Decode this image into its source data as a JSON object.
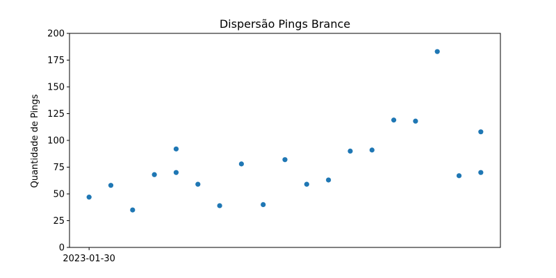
{
  "chart_data": {
    "type": "scatter",
    "title": "Dispersão Pings Brance",
    "xlabel": "",
    "ylabel": "Quantidade de Pings",
    "x_type": "date",
    "x_tick_labels": [
      "2023-01-30"
    ],
    "ylim": [
      0,
      200
    ],
    "y_ticks": [
      0,
      25,
      50,
      75,
      100,
      125,
      150,
      175,
      200
    ],
    "grid": false,
    "marker_color": "#1f77b4",
    "points": [
      {
        "x": "2023-01-30",
        "y": 47
      },
      {
        "x": "2023-01-31",
        "y": 58
      },
      {
        "x": "2023-02-01",
        "y": 35
      },
      {
        "x": "2023-02-02",
        "y": 68
      },
      {
        "x": "2023-02-03",
        "y": 92
      },
      {
        "x": "2023-02-03",
        "y": 70
      },
      {
        "x": "2023-02-04",
        "y": 59
      },
      {
        "x": "2023-02-05",
        "y": 39
      },
      {
        "x": "2023-02-06",
        "y": 78
      },
      {
        "x": "2023-02-07",
        "y": 40
      },
      {
        "x": "2023-02-08",
        "y": 82
      },
      {
        "x": "2023-02-09",
        "y": 59
      },
      {
        "x": "2023-02-10",
        "y": 63
      },
      {
        "x": "2023-02-11",
        "y": 90
      },
      {
        "x": "2023-02-12",
        "y": 91
      },
      {
        "x": "2023-02-13",
        "y": 119
      },
      {
        "x": "2023-02-14",
        "y": 118
      },
      {
        "x": "2023-02-15",
        "y": 183
      },
      {
        "x": "2023-02-16",
        "y": 67
      },
      {
        "x": "2023-02-17",
        "y": 108
      },
      {
        "x": "2023-02-17",
        "y": 70
      }
    ]
  }
}
